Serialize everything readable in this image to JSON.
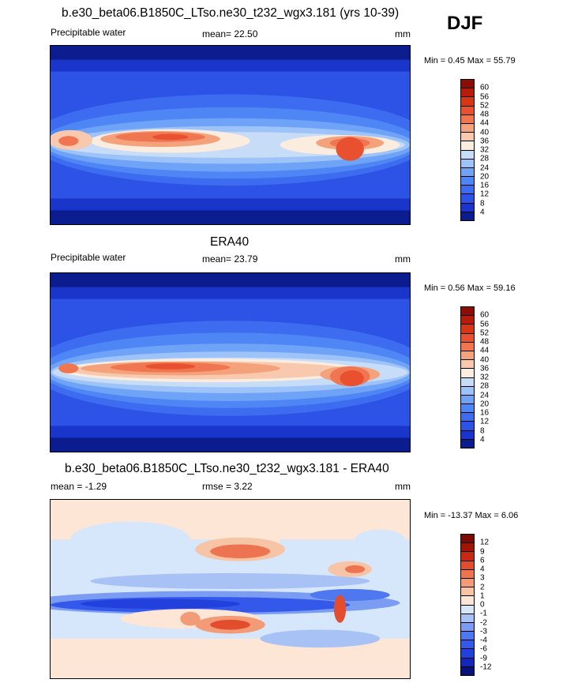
{
  "season": "DJF",
  "panels": [
    {
      "id": "model",
      "title": "b.e30_beta06.B1850C_LTso.ne30_t232_wgx3.181 (yrs 10-39)",
      "left_label": "Precipitable water",
      "center_label": "mean=  22.50",
      "units": "mm",
      "minmax": "Min =   0.45 Max =  55.79",
      "colorbar": {
        "levels": [
          "4",
          "8",
          "12",
          "16",
          "20",
          "24",
          "28",
          "32",
          "36",
          "40",
          "44",
          "48",
          "52",
          "56",
          "60"
        ],
        "colors": [
          "#0b1c8e",
          "#1a35c9",
          "#2c52e6",
          "#3d6cf0",
          "#4f86f5",
          "#6ea3f7",
          "#9dc3f8",
          "#c6dcf7",
          "#fbece0",
          "#f8c9ae",
          "#f4a27c",
          "#ef7650",
          "#e8502f",
          "#d63518",
          "#b61c0a",
          "#8b0d05"
        ]
      }
    },
    {
      "id": "obs",
      "title": "ERA40",
      "left_label": "Precipitable water",
      "center_label": "mean=  23.79",
      "units": "mm",
      "minmax": "Min =   0.56 Max =  59.16",
      "colorbar": {
        "levels": [
          "4",
          "8",
          "12",
          "16",
          "20",
          "24",
          "28",
          "32",
          "36",
          "40",
          "44",
          "48",
          "52",
          "56",
          "60"
        ],
        "colors": [
          "#0b1c8e",
          "#1a35c9",
          "#2c52e6",
          "#3d6cf0",
          "#4f86f5",
          "#6ea3f7",
          "#9dc3f8",
          "#c6dcf7",
          "#fbece0",
          "#f8c9ae",
          "#f4a27c",
          "#ef7650",
          "#e8502f",
          "#d63518",
          "#b61c0a",
          "#8b0d05"
        ]
      }
    },
    {
      "id": "diff",
      "title": "b.e30_beta06.B1850C_LTso.ne30_t232_wgx3.181 - ERA40",
      "left_label": "mean =  -1.29",
      "center_label": "rmse =   3.22",
      "units": "mm",
      "minmax": "Min = -13.37 Max =   6.06",
      "colorbar": {
        "levels": [
          "-12",
          "-9",
          "-6",
          "-4",
          "-3",
          "-2",
          "-1",
          "0",
          "1",
          "2",
          "3",
          "4",
          "6",
          "9",
          "12"
        ],
        "colors": [
          "#08127a",
          "#1428b8",
          "#2240dc",
          "#3459ea",
          "#4e77f0",
          "#7a9cf3",
          "#a9c2f6",
          "#d6e6fb",
          "#fde6d6",
          "#f8c4a6",
          "#f29b76",
          "#ec7451",
          "#e24d2e",
          "#c52a12",
          "#a11507",
          "#7a0a03"
        ]
      }
    }
  ]
}
